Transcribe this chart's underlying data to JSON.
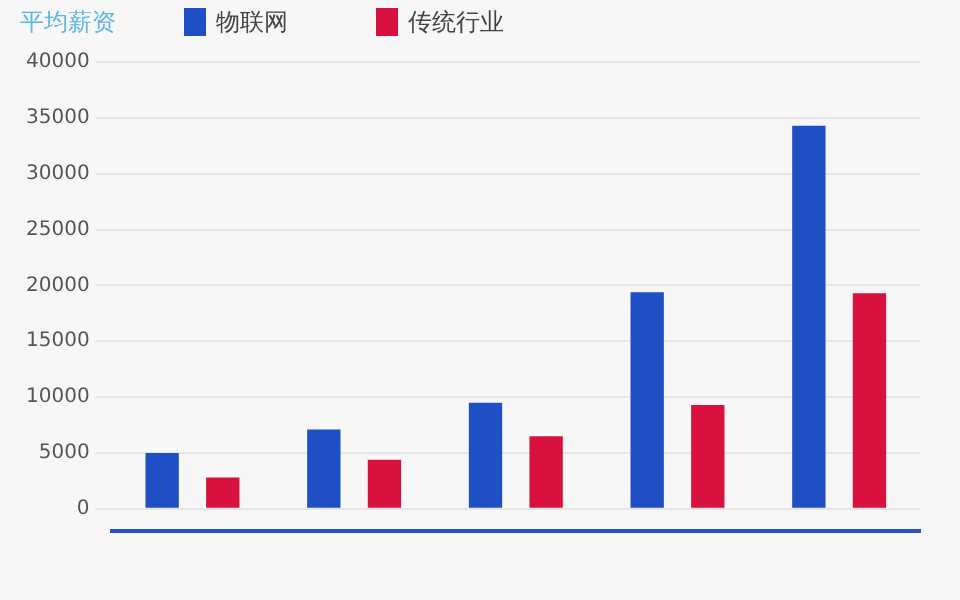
{
  "chart_data": {
    "type": "bar",
    "legend_title": "平均薪资",
    "categories": [
      null,
      null,
      null,
      null,
      null
    ],
    "series": [
      {
        "name": "物联网",
        "color": "#1f4fc4",
        "values": [
          5000,
          7100,
          9500,
          19400,
          34300
        ]
      },
      {
        "name": "传统行业",
        "color": "#d8113f",
        "values": [
          2800,
          4400,
          6500,
          9300,
          19300
        ]
      }
    ],
    "ylim": [
      -2000,
      40000
    ],
    "yticks": [
      0,
      5000,
      10000,
      15000,
      20000,
      25000,
      30000,
      35000,
      40000
    ],
    "grid": "y",
    "legend": "top left"
  }
}
